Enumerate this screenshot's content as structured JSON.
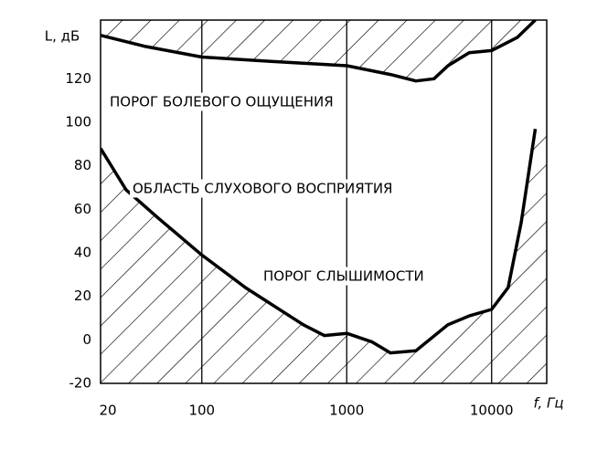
{
  "chart_data": {
    "type": "line",
    "ylabel": "L, дБ",
    "xlabel": "f, Гц",
    "xlog": true,
    "grid": "x",
    "xlim": [
      20,
      24000
    ],
    "ylim": [
      -20,
      147
    ],
    "xticks": [
      20,
      100,
      1000,
      10000
    ],
    "yticks": [
      -20,
      0,
      20,
      40,
      60,
      80,
      100,
      120
    ],
    "annotations": [
      "ПОРОГ БОЛЕВОГО ОЩУЩЕНИЯ",
      "ОБЛАСТЬ СЛУХОВОГО ВОСПРИЯТИЯ",
      "ПОРОГ СЛЫШИМОСТИ"
    ],
    "series": [
      {
        "name": "ПОРОГ БОЛЕВОГО ОЩУЩЕНИЯ",
        "color": "#000000",
        "fill": "above",
        "x": [
          20,
          40,
          100,
          300,
          1000,
          2000,
          3000,
          4000,
          5000,
          7000,
          10000,
          15000,
          20000
        ],
        "values": [
          140,
          135,
          130,
          128,
          126,
          122,
          119,
          120,
          126,
          132,
          133,
          139,
          147
        ]
      },
      {
        "name": "ПОРОГ СЛЫШИМОСТИ",
        "color": "#000000",
        "fill": "below",
        "x": [
          20,
          30,
          50,
          100,
          200,
          500,
          700,
          1000,
          1500,
          2000,
          3000,
          5000,
          7000,
          10000,
          13000,
          16000,
          20000
        ],
        "values": [
          88,
          69,
          56,
          39,
          24,
          7,
          2,
          3,
          -1,
          -6,
          -5,
          7,
          11,
          14,
          24,
          54,
          97
        ]
      }
    ]
  }
}
